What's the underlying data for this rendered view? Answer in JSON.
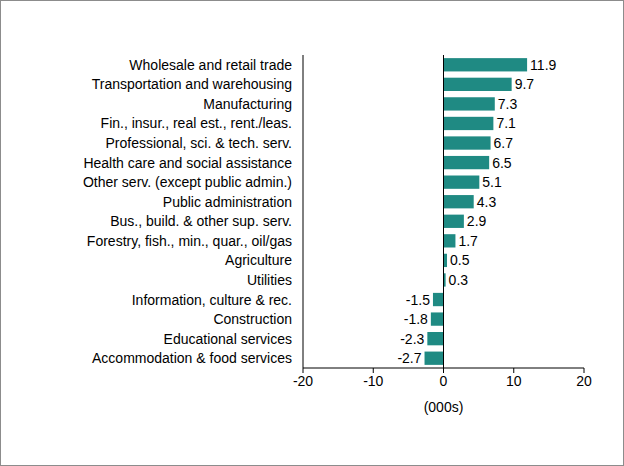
{
  "chart_data": {
    "type": "bar",
    "orientation": "horizontal",
    "categories": [
      "Wholesale and retail trade",
      "Transportation and warehousing",
      "Manufacturing",
      "Fin., insur., real est., rent./leas.",
      "Professional, sci. & tech. serv.",
      "Health care and social assistance",
      "Other serv. (except public admin.)",
      "Public administration",
      "Bus., build. & other sup. serv.",
      "Forestry, fish., min., quar., oil/gas",
      "Agriculture",
      "Utilities",
      "Information, culture & rec.",
      "Construction",
      "Educational services",
      "Accommodation & food services"
    ],
    "values": [
      11.9,
      9.7,
      7.3,
      7.1,
      6.7,
      6.5,
      5.1,
      4.3,
      2.9,
      1.7,
      0.5,
      0.3,
      -1.5,
      -1.8,
      -2.3,
      -2.7
    ],
    "color": "#1f8a83",
    "x_label": "(000s)",
    "xlim": [
      -20,
      20
    ],
    "xticks": [
      -20,
      -10,
      0,
      10,
      20
    ],
    "data_labels": true,
    "grid": false
  }
}
